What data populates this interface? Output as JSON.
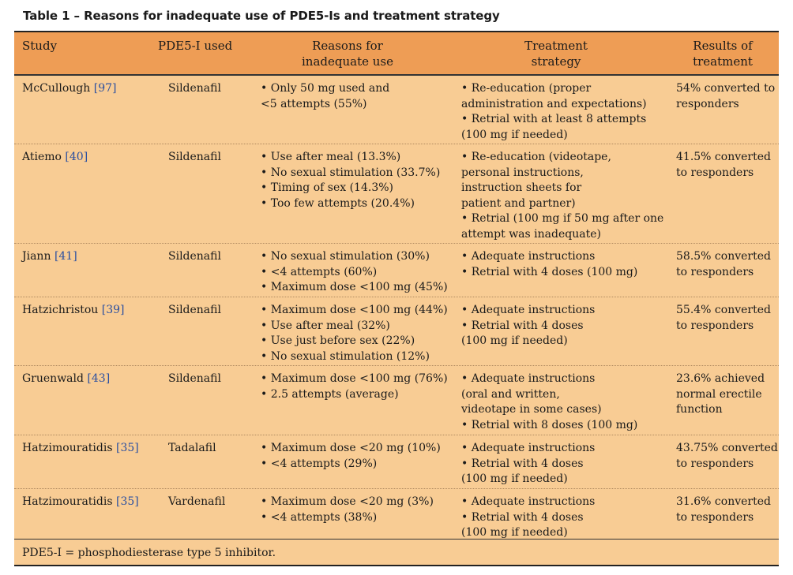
{
  "title": "Table 1 – Reasons for inadequate use of PDE5-Is and treatment strategy",
  "headers": {
    "study": "Study",
    "pde5i": "PDE5-I used",
    "reasons_1": "Reasons for",
    "reasons_2": "inadequate use",
    "strategy_1": "Treatment",
    "strategy_2": "strategy",
    "results_1": "Results of",
    "results_2": "treatment"
  },
  "rows": [
    {
      "study": "McCullough",
      "ref": "[97]",
      "drug": "Sildenafil",
      "reasons": [
        "Only 50 mg used and",
        "<5 attempts (55%)"
      ],
      "strategy": [
        "Re-education (proper",
        "administration and expectations)",
        "Retrial with at least 8 attempts",
        "(100 mg if needed)"
      ],
      "results": [
        "54% converted to",
        "responders"
      ]
    },
    {
      "study": "Atiemo",
      "ref": "[40]",
      "drug": "Sildenafil",
      "reasons": [
        "Use after meal (13.3%)",
        "No sexual stimulation (33.7%)",
        "Timing of sex (14.3%)",
        "Too few attempts (20.4%)"
      ],
      "strategy": [
        "Re-education (videotape,",
        "personal instructions,",
        "instruction sheets for",
        "patient and partner)",
        "Retrial (100 mg if 50 mg after one",
        "attempt was inadequate)"
      ],
      "results": [
        "41.5% converted",
        "to responders"
      ]
    },
    {
      "study": "Jiann",
      "ref": "[41]",
      "drug": "Sildenafil",
      "reasons": [
        "No sexual stimulation (30%)",
        "<4 attempts (60%)",
        "Maximum dose <100 mg (45%)"
      ],
      "strategy": [
        "Adequate instructions",
        "Retrial with 4 doses (100 mg)"
      ],
      "results": [
        "58.5% converted",
        "to responders"
      ]
    },
    {
      "study": "Hatzichristou",
      "ref": "[39]",
      "drug": "Sildenafil",
      "reasons": [
        "Maximum dose <100 mg (44%)",
        "Use after meal (32%)",
        "Use just before sex (22%)",
        "No sexual stimulation (12%)"
      ],
      "strategy": [
        "Adequate instructions",
        "Retrial with 4 doses",
        "(100 mg if needed)"
      ],
      "results": [
        "55.4% converted",
        "to responders"
      ]
    },
    {
      "study": "Gruenwald",
      "ref": "[43]",
      "drug": "Sildenafil",
      "reasons": [
        "Maximum dose <100 mg (76%)",
        "2.5 attempts (average)"
      ],
      "strategy": [
        "Adequate instructions",
        "(oral and written,",
        "videotape in some cases)",
        "Retrial with 8 doses (100 mg)"
      ],
      "results": [
        "23.6% achieved",
        "normal erectile",
        "function"
      ]
    },
    {
      "study": "Hatzimouratidis",
      "ref": "[35]",
      "drug": "Tadalafil",
      "reasons": [
        "Maximum dose <20 mg (10%)",
        "<4 attempts (29%)"
      ],
      "strategy": [
        "Adequate instructions",
        "Retrial with 4 doses",
        "(100 mg if needed)"
      ],
      "results": [
        "43.75% converted",
        "to responders"
      ]
    },
    {
      "study": "Hatzimouratidis",
      "ref": "[35]",
      "drug": "Vardenafil",
      "reasons": [
        "Maximum dose <20 mg (3%)",
        "<4 attempts (38%)"
      ],
      "strategy": [
        "Adequate instructions",
        "Retrial with 4 doses",
        "(100 mg if needed)"
      ],
      "results": [
        "31.6% converted",
        "to responders"
      ]
    }
  ],
  "footnote": "PDE5-I = phosphodiesterase type 5 inhibitor."
}
